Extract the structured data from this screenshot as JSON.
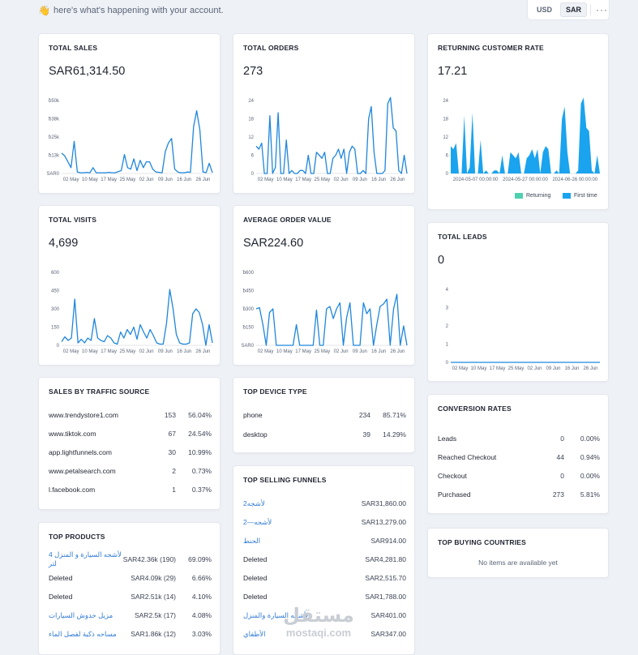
{
  "header": {
    "wave": "👋",
    "greeting": "here's what's happening with your account.",
    "currencies": [
      "USD",
      "SAR"
    ],
    "active_currency": "SAR",
    "more": "···"
  },
  "x_ticks": [
    "02 May",
    "10 May",
    "17 May",
    "25 May",
    "02 Jun",
    "09 Jun",
    "16 Jun",
    "26 Jun"
  ],
  "total_sales": {
    "title": "TOTAL SALES",
    "value": "SAR61,314.50",
    "y_ticks": [
      "SAR0",
      "ƀ13k",
      "ƀ25k",
      "ƀ38k",
      "ƀ50k"
    ],
    "chart_data": {
      "type": "line",
      "ylim": [
        0,
        50000
      ],
      "color": "#1f86dc",
      "values": [
        14000,
        12000,
        8000,
        4000,
        22000,
        1000,
        500,
        500,
        800,
        500,
        4000,
        500,
        500,
        500,
        500,
        800,
        500,
        500,
        1200,
        2000,
        13000,
        4000,
        3000,
        10000,
        2000,
        9000,
        4000,
        8000,
        8000,
        3000,
        1000,
        800,
        500,
        15000,
        21000,
        24000,
        3000,
        1000,
        500,
        500,
        1000,
        800,
        32000,
        43000,
        30000,
        1000,
        600,
        7000,
        500
      ]
    }
  },
  "total_orders": {
    "title": "TOTAL ORDERS",
    "value": "273",
    "y_ticks": [
      "0",
      "6",
      "12",
      "18",
      "24"
    ],
    "chart_data": {
      "type": "line",
      "ylim": [
        0,
        24
      ],
      "color": "#1f86dc",
      "values": [
        9,
        8,
        10,
        0,
        0,
        19,
        0,
        2,
        20,
        0,
        0,
        11,
        0,
        1,
        0,
        0,
        1,
        1,
        0,
        6,
        0,
        0,
        7,
        6,
        5,
        7,
        0,
        0,
        5,
        6,
        8,
        5,
        8,
        0,
        7,
        9,
        8,
        0,
        0,
        1,
        0,
        18,
        22,
        7,
        0,
        0,
        0,
        1,
        23,
        25,
        15,
        14,
        1,
        0,
        6,
        0
      ]
    }
  },
  "returning_rate": {
    "title": "RETURNING CUSTOMER RATE",
    "value": "17.21",
    "y_ticks": [
      "0",
      "6",
      "12",
      "18",
      "24"
    ],
    "x_ticks": [
      "2024-05-07 00:00:00",
      "2024-05-27 00:00:00",
      "2024-06-26 00:00:00"
    ],
    "legend": [
      "Returning",
      "First time"
    ],
    "legend_colors": [
      "#4fd1b0",
      "#1aa3ee"
    ],
    "chart_data": {
      "type": "area",
      "ylim": [
        0,
        24
      ],
      "color": "#1aa3ee",
      "values": [
        9,
        8,
        10,
        0,
        0,
        19,
        0,
        2,
        20,
        0,
        0,
        11,
        0,
        1,
        0,
        0,
        1,
        1,
        0,
        6,
        0,
        0,
        7,
        6,
        5,
        7,
        0,
        0,
        5,
        6,
        8,
        5,
        8,
        0,
        7,
        9,
        8,
        0,
        0,
        1,
        0,
        18,
        22,
        7,
        0,
        0,
        0,
        1,
        23,
        25,
        15,
        14,
        1,
        0,
        6,
        0
      ]
    }
  },
  "total_visits": {
    "title": "TOTAL VISITS",
    "value": "4,699",
    "y_ticks": [
      "0",
      "150",
      "300",
      "450",
      "600"
    ],
    "chart_data": {
      "type": "line",
      "ylim": [
        0,
        600
      ],
      "color": "#1f86dc",
      "values": [
        30,
        70,
        40,
        60,
        380,
        20,
        50,
        20,
        60,
        40,
        220,
        60,
        40,
        30,
        80,
        60,
        20,
        10,
        110,
        60,
        130,
        90,
        150,
        50,
        170,
        110,
        60,
        130,
        80,
        20,
        10,
        10,
        180,
        460,
        300,
        90,
        20,
        10,
        10,
        20,
        260,
        300,
        270,
        170,
        0,
        170,
        20
      ]
    }
  },
  "avg_order": {
    "title": "AVERAGE ORDER VALUE",
    "value": "SAR224.60",
    "y_ticks": [
      "SAR0",
      "ƀ150",
      "ƀ300",
      "ƀ450",
      "ƀ600"
    ],
    "chart_data": {
      "type": "line",
      "ylim": [
        0,
        600
      ],
      "color": "#1f86dc",
      "values": [
        300,
        310,
        170,
        0,
        270,
        300,
        0,
        0,
        0,
        0,
        0,
        0,
        170,
        0,
        0,
        0,
        0,
        0,
        290,
        0,
        0,
        300,
        320,
        220,
        300,
        350,
        0,
        230,
        350,
        0,
        0,
        0,
        350,
        260,
        300,
        0,
        170,
        320,
        340,
        380,
        0,
        300,
        420,
        0,
        160,
        0
      ]
    }
  },
  "total_leads": {
    "title": "TOTAL LEADS",
    "value": "0",
    "y_ticks": [
      "0",
      "1",
      "2",
      "3",
      "4"
    ],
    "chart_data": {
      "type": "line",
      "ylim": [
        0,
        4
      ],
      "color": "#1f86dc",
      "values": [
        0,
        0,
        0,
        0,
        0,
        0,
        0,
        0,
        0,
        0
      ]
    }
  },
  "traffic": {
    "title": "SALES BY TRAFFIC SOURCE",
    "rows": [
      {
        "label": "www.trendystore1.com",
        "count": "153",
        "pct": "56.04%"
      },
      {
        "label": "www.tiktok.com",
        "count": "67",
        "pct": "24.54%"
      },
      {
        "label": "app.lightfunnels.com",
        "count": "30",
        "pct": "10.99%"
      },
      {
        "label": "www.petalsearch.com",
        "count": "2",
        "pct": "0.73%"
      },
      {
        "label": "l.facebook.com",
        "count": "1",
        "pct": "0.37%"
      }
    ]
  },
  "device": {
    "title": "TOP DEVICE TYPE",
    "rows": [
      {
        "label": "phone",
        "count": "234",
        "pct": "85.71%"
      },
      {
        "label": "desktop",
        "count": "39",
        "pct": "14.29%"
      }
    ]
  },
  "conversion": {
    "title": "CONVERSION RATES",
    "rows": [
      {
        "label": "Leads",
        "count": "0",
        "pct": "0.00%"
      },
      {
        "label": "Reached Checkout",
        "count": "44",
        "pct": "0.94%"
      },
      {
        "label": "Checkout",
        "count": "0",
        "pct": "0.00%"
      },
      {
        "label": "Purchased",
        "count": "273",
        "pct": "5.81%"
      }
    ]
  },
  "funnels": {
    "title": "TOP SELLING FUNNELS",
    "rows": [
      {
        "label": "لأشجه2",
        "value": "SAR31,860.00",
        "link": true
      },
      {
        "label": "لأشجه—2",
        "value": "SAR13,279.00",
        "link": true
      },
      {
        "label": "الحنط",
        "value": "SAR914.00",
        "link": true
      },
      {
        "label": "Deleted",
        "value": "SAR4,281.80",
        "link": false
      },
      {
        "label": "Deleted",
        "value": "SAR2,515.70",
        "link": false
      },
      {
        "label": "Deleted",
        "value": "SAR1,788.00",
        "link": false
      },
      {
        "label": "لأشجه السيارة والمنزل",
        "value": "SAR401.00",
        "link": true
      },
      {
        "label": "الأطفاي",
        "value": "SAR347.00",
        "link": true
      }
    ]
  },
  "products": {
    "title": "TOP PRODUCTS",
    "rows": [
      {
        "label": "لأشجه السيارة و المنزل 4 لتر",
        "value": "SAR42.36k (190)",
        "pct": "69.09%",
        "link": true
      },
      {
        "label": "Deleted",
        "value": "SAR4.09k (29)",
        "pct": "6.66%",
        "link": false
      },
      {
        "label": "Deleted",
        "value": "SAR2.51k (14)",
        "pct": "4.10%",
        "link": false
      },
      {
        "label": "مزيل خدوش السيارات",
        "value": "SAR2.5k (17)",
        "pct": "4.08%",
        "link": true
      },
      {
        "label": "مساحه ذكية لفصل الماء",
        "value": "SAR1.86k (12)",
        "pct": "3.03%",
        "link": true
      }
    ]
  },
  "countries": {
    "title": "TOP BUYING COUNTRIES",
    "empty": "No items are available yet"
  },
  "watermark": {
    "ar": "مستقل",
    "en": "mostaqi.com"
  }
}
